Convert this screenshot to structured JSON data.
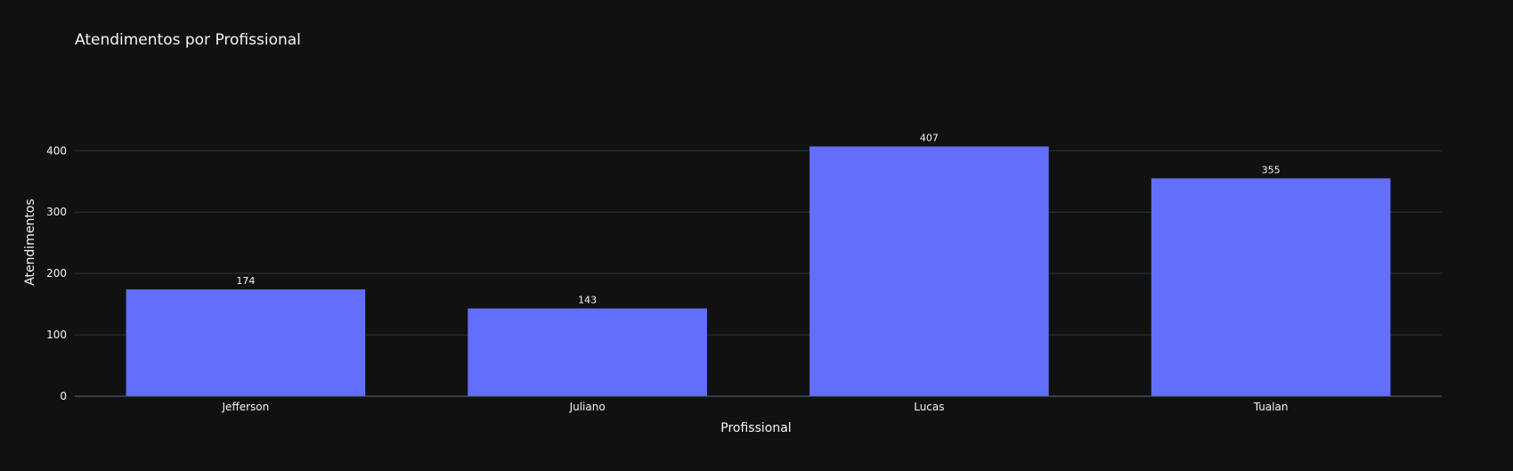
{
  "chart_data": {
    "type": "bar",
    "title": "Atendimentos por Profissional",
    "xlabel": "Profissional",
    "ylabel": "Atendimentos",
    "categories": [
      "Jefferson",
      "Juliano",
      "Lucas",
      "Tualan"
    ],
    "values": [
      174,
      143,
      407,
      355
    ],
    "data_labels": [
      "174",
      "143",
      "407",
      "355"
    ],
    "yticks": [
      0,
      100,
      200,
      300,
      400
    ],
    "ytick_labels": [
      "0",
      "100",
      "200",
      "300",
      "400"
    ],
    "ylim": [
      0,
      428
    ],
    "grid": true,
    "legend": "none"
  },
  "colors": {
    "background": "#111111",
    "bar": "#636efa",
    "grid": "#283442",
    "axis_line": "#506784",
    "text": "#f2f5fa"
  }
}
